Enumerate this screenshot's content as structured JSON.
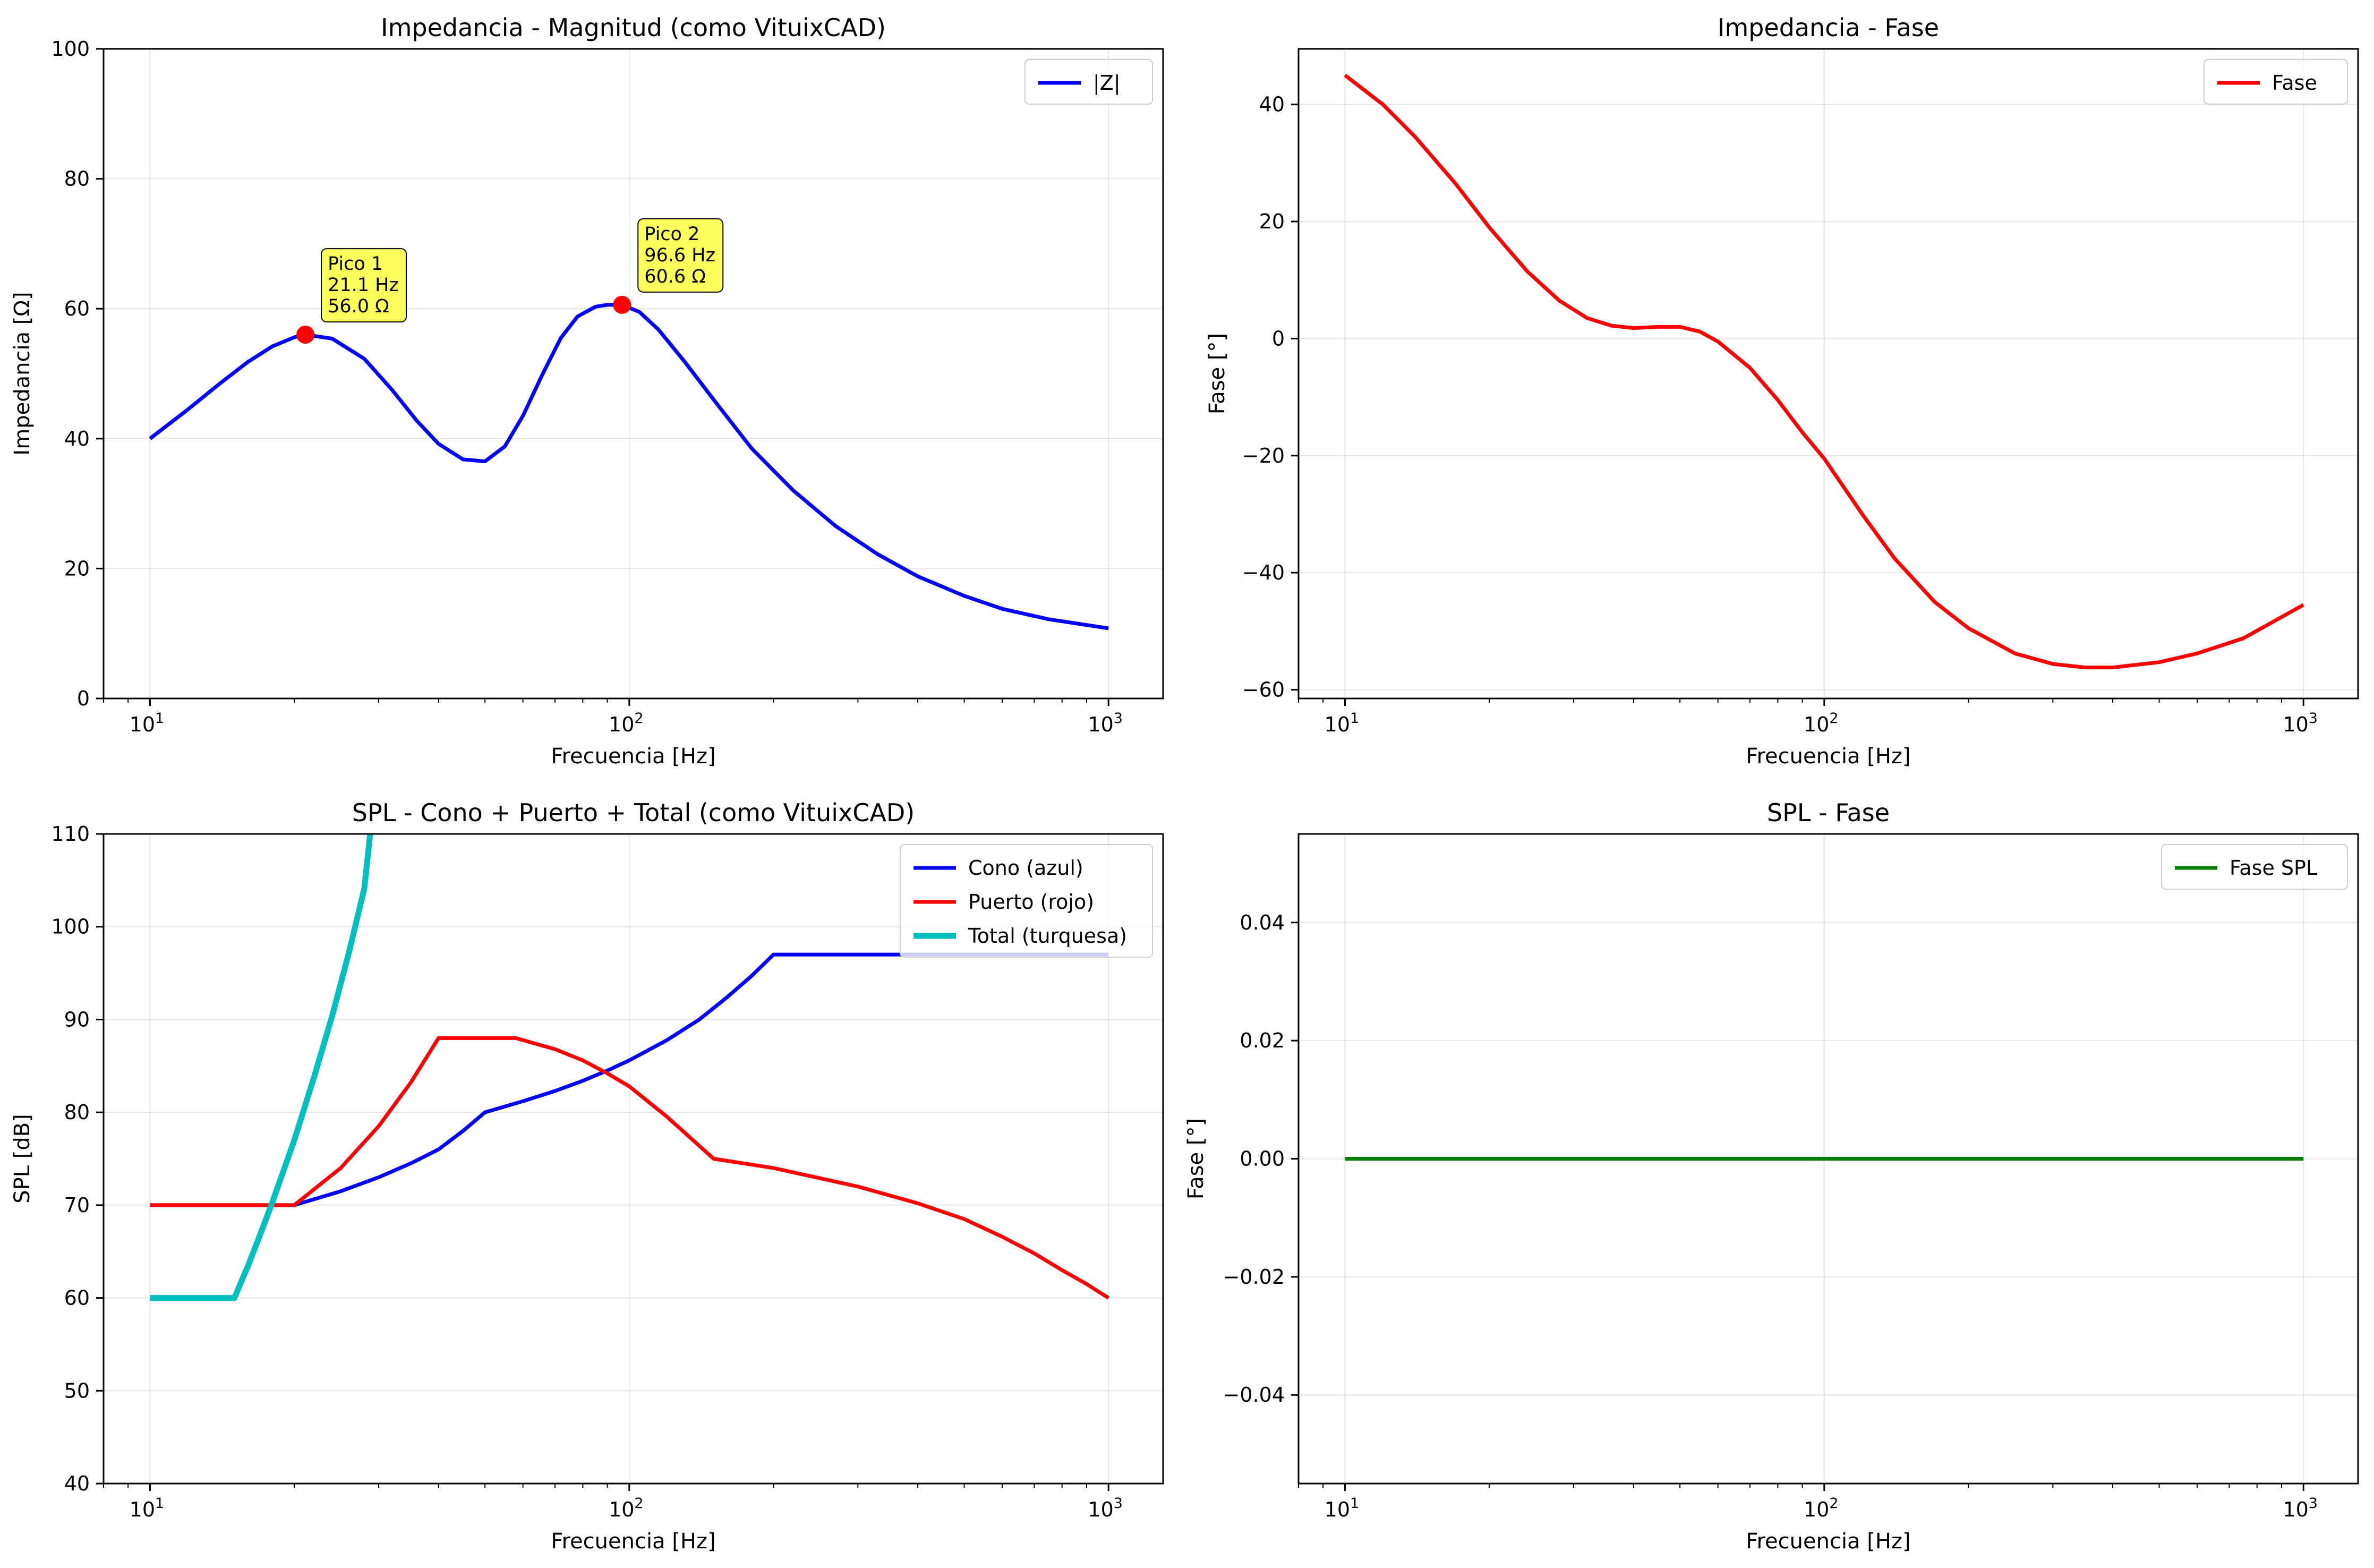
{
  "chart_data": [
    {
      "type": "line",
      "title": "Impedancia - Magnitud (como VituixCAD)",
      "xlabel": "Frecuencia [Hz]",
      "ylabel": "Impedancia [Ω]",
      "xscale": "log",
      "xlim": [
        8,
        1300
      ],
      "ylim": [
        0,
        100
      ],
      "yticks": [
        0,
        20,
        40,
        60,
        80,
        100
      ],
      "xticks": [
        10,
        100,
        1000
      ],
      "xtick_labels": [
        "10",
        "10",
        "10"
      ],
      "xtick_sups": [
        "1",
        "2",
        "3"
      ],
      "grid": true,
      "legend": "top-right",
      "series": [
        {
          "name": "|Z|",
          "color": "#0000ff",
          "x": [
            10,
            12,
            14,
            16,
            18,
            20,
            21.1,
            24,
            28,
            32,
            36,
            40,
            45,
            50,
            55,
            60,
            66,
            72,
            78,
            85,
            90,
            96.6,
            105,
            115,
            130,
            150,
            180,
            220,
            270,
            330,
            400,
            500,
            600,
            750,
            1000
          ],
          "y": [
            40,
            44.5,
            48.5,
            51.8,
            54.2,
            55.6,
            56.0,
            55.4,
            52.3,
            47.5,
            42.8,
            39.2,
            36.8,
            36.5,
            38.8,
            43.5,
            50.0,
            55.5,
            58.8,
            60.3,
            60.6,
            60.6,
            59.5,
            56.8,
            52.0,
            46.0,
            38.5,
            32.0,
            26.5,
            22.2,
            18.8,
            15.8,
            13.8,
            12.2,
            10.8
          ]
        }
      ],
      "annotations": [
        {
          "lines": [
            "Pico 1",
            "21.1 Hz",
            "56.0 Ω"
          ],
          "x": 21.1,
          "y": 56.0
        },
        {
          "lines": [
            "Pico 2",
            "96.6 Hz",
            "60.6 Ω"
          ],
          "x": 96.6,
          "y": 60.6
        }
      ],
      "colors": {
        "annotation_box": "#ffff33",
        "marker": "#ff0000"
      }
    },
    {
      "type": "line",
      "title": "Impedancia - Fase",
      "xlabel": "Frecuencia [Hz]",
      "ylabel": "Fase [°]",
      "xscale": "log",
      "xlim": [
        8,
        1300
      ],
      "ylim": [
        -61.5,
        49.5
      ],
      "yticks": [
        -60,
        -40,
        -20,
        0,
        20,
        40
      ],
      "ytick_labels": [
        "−60",
        "−40",
        "−20",
        "0",
        "20",
        "40"
      ],
      "xticks": [
        10,
        100,
        1000
      ],
      "xtick_labels": [
        "10",
        "10",
        "10"
      ],
      "xtick_sups": [
        "1",
        "2",
        "3"
      ],
      "grid": true,
      "legend": "top-right",
      "series": [
        {
          "name": "Fase",
          "color": "#ff0000",
          "x": [
            10,
            12,
            14,
            17,
            20,
            24,
            28,
            32,
            36,
            40,
            45,
            50,
            55,
            60,
            70,
            80,
            90,
            100,
            120,
            140,
            170,
            200,
            250,
            300,
            350,
            400,
            500,
            600,
            750,
            1000
          ],
          "y": [
            45,
            40,
            34.5,
            26.5,
            19,
            11.5,
            6.5,
            3.5,
            2.2,
            1.8,
            2,
            2,
            1.2,
            -0.5,
            -5,
            -10.5,
            -16,
            -20.5,
            -30,
            -37.5,
            -45,
            -49.5,
            -53.8,
            -55.6,
            -56.2,
            -56.2,
            -55.3,
            -53.8,
            -51.2,
            -45.5
          ]
        }
      ]
    },
    {
      "type": "line",
      "title": "SPL - Cono + Puerto + Total (como VituixCAD)",
      "xlabel": "Frecuencia [Hz]",
      "ylabel": "SPL [dB]",
      "xscale": "log",
      "xlim": [
        8,
        1300
      ],
      "ylim": [
        40,
        110
      ],
      "yticks": [
        40,
        50,
        60,
        70,
        80,
        90,
        100,
        110
      ],
      "xticks": [
        10,
        100,
        1000
      ],
      "xtick_labels": [
        "10",
        "10",
        "10"
      ],
      "xtick_sups": [
        "1",
        "2",
        "3"
      ],
      "grid": true,
      "legend": "top-right",
      "series": [
        {
          "name": "Cono (azul)",
          "color": "#0000ff",
          "x": [
            10,
            20,
            25,
            30,
            35,
            40,
            45,
            50,
            60,
            70,
            80,
            90,
            100,
            120,
            140,
            160,
            180,
            200,
            300,
            500,
            1000
          ],
          "y": [
            70,
            70,
            71.5,
            73,
            74.5,
            76,
            78,
            80,
            81.2,
            82.3,
            83.4,
            84.5,
            85.6,
            87.8,
            90,
            92.4,
            94.7,
            97,
            97,
            97,
            97
          ]
        },
        {
          "name": "Puerto (rojo)",
          "color": "#ff0000",
          "x": [
            10,
            20,
            25,
            30,
            35,
            40,
            50,
            58,
            70,
            80,
            90,
            100,
            120,
            150,
            200,
            300,
            400,
            500,
            600,
            700,
            800,
            900,
            1000
          ],
          "y": [
            70,
            70,
            74,
            78.5,
            83.2,
            88,
            88,
            88,
            86.8,
            85.6,
            84.2,
            82.8,
            79.5,
            75,
            74,
            72,
            70.2,
            68.5,
            66.6,
            64.8,
            63,
            61.5,
            60
          ]
        },
        {
          "name": "Total (turquesa)",
          "color": "#00bfbf",
          "x": [
            10,
            15,
            16,
            17,
            18,
            20,
            22,
            24,
            26,
            28,
            28.8
          ],
          "y": [
            60,
            60,
            63.4,
            66.9,
            70.3,
            77,
            83.8,
            90.4,
            97.2,
            104.1,
            110
          ]
        }
      ]
    },
    {
      "type": "line",
      "title": "SPL - Fase",
      "xlabel": "Frecuencia [Hz]",
      "ylabel": "Fase [°]",
      "xscale": "log",
      "xlim": [
        8,
        1300
      ],
      "ylim": [
        -0.055,
        0.055
      ],
      "yticks": [
        -0.04,
        -0.02,
        0,
        0.02,
        0.04
      ],
      "ytick_labels": [
        "−0.04",
        "−0.02",
        "0.00",
        "0.02",
        "0.04"
      ],
      "xticks": [
        10,
        100,
        1000
      ],
      "xtick_labels": [
        "10",
        "10",
        "10"
      ],
      "xtick_sups": [
        "1",
        "2",
        "3"
      ],
      "grid": true,
      "legend": "top-right",
      "series": [
        {
          "name": "Fase SPL",
          "color": "#008000",
          "x": [
            10,
            1000
          ],
          "y": [
            0,
            0
          ]
        }
      ]
    }
  ]
}
